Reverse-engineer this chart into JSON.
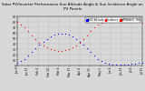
{
  "title": "Solar PV/Inverter Performance Sun Altitude Angle & Sun Incidence Angle on PV Panels",
  "legend_labels": [
    "HOZ Altitude",
    "Incidence",
    "APPARENT TRK"
  ],
  "legend_colors": [
    "#0000ff",
    "#ff0000",
    "#ff0000"
  ],
  "blue_x": [
    0,
    1,
    2,
    3,
    4,
    5,
    6,
    7,
    8,
    9,
    10,
    11,
    12,
    13,
    14,
    15,
    16,
    17,
    18,
    19,
    20,
    21,
    22,
    23,
    24,
    25,
    26,
    27,
    28,
    29,
    30,
    31,
    32,
    33,
    34
  ],
  "blue_y": [
    5,
    8,
    12,
    18,
    25,
    32,
    38,
    44,
    49,
    53,
    56,
    58,
    59,
    58,
    56,
    53,
    49,
    44,
    38,
    32,
    25,
    18,
    12,
    8,
    5,
    3,
    2,
    1,
    1,
    1,
    2,
    3,
    4,
    5,
    5
  ],
  "red_x": [
    0,
    1,
    2,
    3,
    4,
    5,
    6,
    7,
    8,
    9,
    10,
    11,
    12,
    13,
    14,
    15,
    16,
    17,
    18,
    19,
    20,
    21,
    22,
    23,
    24,
    25,
    26,
    27,
    28,
    29,
    30,
    31,
    32,
    33,
    34
  ],
  "red_y": [
    80,
    75,
    70,
    63,
    55,
    48,
    42,
    37,
    33,
    30,
    28,
    27,
    27,
    28,
    30,
    33,
    37,
    42,
    48,
    55,
    63,
    70,
    75,
    78,
    80,
    82,
    83,
    84,
    84,
    84,
    83,
    82,
    81,
    80,
    79
  ],
  "xlim": [
    0,
    34
  ],
  "ylim": [
    0,
    90
  ],
  "ytick_values": [
    0,
    10,
    20,
    30,
    40,
    50,
    60,
    70,
    80,
    90
  ],
  "ytick_labels": [
    "0",
    "10",
    "20",
    "30",
    "40",
    "50",
    "60",
    "70",
    "80",
    "90"
  ],
  "xtick_labels": [
    "Jan 5",
    "Jan 15",
    "Feb 4",
    "Feb 14",
    "Mar 4",
    "Mar 15",
    "Apr 4",
    "Apr 15",
    "May 5",
    "Jun 4",
    "Jun 14",
    "Jul 4",
    "Jul 15"
  ],
  "background_color": "#d8d8d8",
  "grid_color": "#b0b0b0",
  "title_fontsize": 3.0,
  "tick_fontsize": 2.2,
  "legend_fontsize": 2.0,
  "dot_size": 0.8
}
